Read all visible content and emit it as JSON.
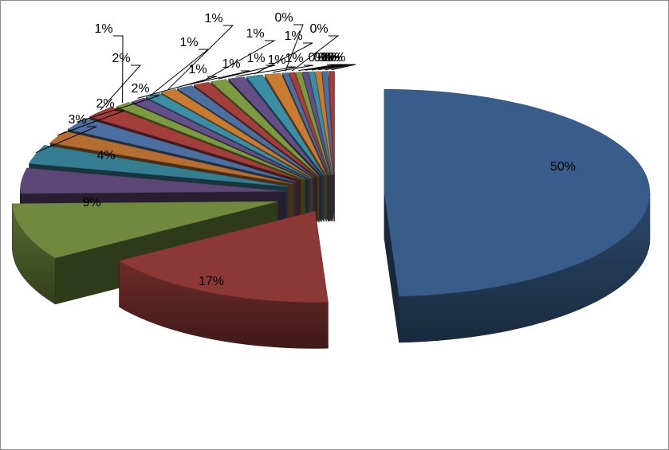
{
  "chart_data": {
    "type": "pie",
    "style": "exploded-3d",
    "title": "",
    "legend": "none",
    "values": [
      50,
      17,
      9,
      4,
      3,
      2,
      2,
      2,
      1,
      1,
      1,
      1,
      1,
      1,
      1,
      1,
      1,
      1,
      0,
      0,
      0,
      0,
      0,
      0,
      0,
      0
    ],
    "labels": [
      "50%",
      "17%",
      "9%",
      "4%",
      "3%",
      "2%",
      "2%",
      "2%",
      "1%",
      "1%",
      "1%",
      "1%",
      "1%",
      "1%",
      "1%",
      "1%",
      "1%",
      "1%",
      "0%",
      "0%",
      "0%",
      "0%",
      "0%",
      "0%",
      "0%",
      "0%"
    ],
    "colors": [
      "#385d8a",
      "#8c3836",
      "#71893f",
      "#5c4776",
      "#357d91",
      "#b66d31",
      "#4a6fa0",
      "#a33e3b",
      "#7c9a3f",
      "#644f86",
      "#3a8ea5",
      "#c97b30",
      "#4a6fa0",
      "#a33e3b",
      "#7c9a3f",
      "#644f86",
      "#3a8ea5",
      "#c97b30",
      "#4a6fa0",
      "#a33e3b",
      "#7c9a3f",
      "#644f86",
      "#3a8ea5",
      "#c97b30",
      "#4a6fa0",
      "#a33e3b"
    ]
  }
}
